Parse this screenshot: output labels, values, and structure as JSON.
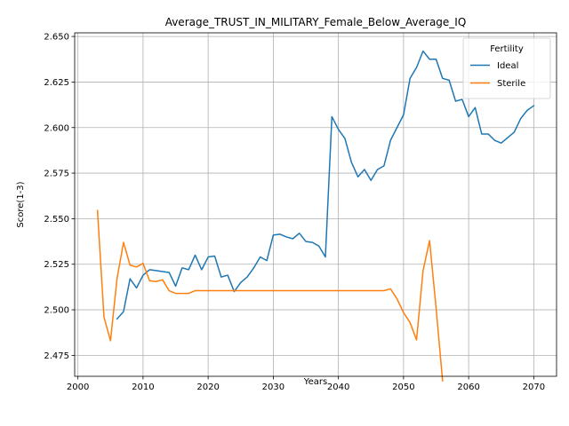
{
  "chart_data": {
    "type": "line",
    "title": "Average_TRUST_IN_MILITARY_Female_Below_Average_IQ",
    "xlabel": "Years",
    "ylabel": "Score(1-3)",
    "xlim": [
      1999.5,
      2073.5
    ],
    "ylim": [
      2.4635,
      2.652
    ],
    "xticks": [
      2000,
      2010,
      2020,
      2030,
      2040,
      2050,
      2060,
      2070
    ],
    "yticks": [
      2.475,
      2.5,
      2.525,
      2.55,
      2.575,
      2.6,
      2.625,
      2.65
    ],
    "grid": true,
    "legend": {
      "title": "Fertility",
      "position": "top-right"
    },
    "series": [
      {
        "name": "Ideal",
        "color": "#1f77b4",
        "x": [
          2006,
          2007,
          2008,
          2009,
          2010,
          2011,
          2012,
          2013,
          2014,
          2015,
          2016,
          2017,
          2018,
          2019,
          2020,
          2021,
          2022,
          2023,
          2024,
          2025,
          2026,
          2027,
          2028,
          2029,
          2030,
          2031,
          2032,
          2033,
          2034,
          2035,
          2036,
          2037,
          2038,
          2039,
          2040,
          2041,
          2042,
          2043,
          2044,
          2045,
          2046,
          2047,
          2048,
          2049,
          2050,
          2051,
          2052,
          2053,
          2054,
          2055,
          2056,
          2057,
          2058,
          2059,
          2060,
          2061,
          2062,
          2063,
          2064,
          2065,
          2066,
          2067,
          2068,
          2069,
          2070
        ],
        "y": [
          2.495,
          2.499,
          2.517,
          2.512,
          2.519,
          2.522,
          2.5215,
          2.521,
          2.5205,
          2.513,
          2.523,
          2.522,
          2.53,
          2.522,
          2.529,
          2.5295,
          2.518,
          2.519,
          2.51,
          2.515,
          2.518,
          2.523,
          2.529,
          2.527,
          2.541,
          2.5415,
          2.54,
          2.539,
          2.542,
          2.5375,
          2.537,
          2.535,
          2.529,
          2.606,
          2.599,
          2.594,
          2.581,
          2.573,
          2.577,
          2.571,
          2.577,
          2.579,
          2.593,
          2.6,
          2.607,
          2.627,
          2.633,
          2.642,
          2.6375,
          2.6375,
          2.627,
          2.626,
          2.6145,
          2.6155,
          2.606,
          2.611,
          2.5965,
          2.5965,
          2.593,
          2.5915,
          2.5945,
          2.5975,
          2.605,
          2.6095,
          2.612
        ]
      },
      {
        "name": "Sterile",
        "color": "#ff7f0e",
        "x": [
          2003,
          2004,
          2005,
          2006,
          2007,
          2008,
          2009,
          2010,
          2011,
          2012,
          2013,
          2014,
          2015,
          2016,
          2017,
          2018,
          2019,
          2020,
          2021,
          2022,
          2023,
          2024,
          2025,
          2026,
          2027,
          2028,
          2029,
          2030,
          2031,
          2032,
          2033,
          2034,
          2035,
          2036,
          2037,
          2038,
          2039,
          2040,
          2041,
          2042,
          2043,
          2044,
          2045,
          2046,
          2047,
          2048,
          2049,
          2050,
          2051,
          2052,
          2053,
          2054,
          2055,
          2056
        ],
        "y": [
          2.5545,
          2.496,
          2.483,
          2.517,
          2.537,
          2.5245,
          2.5235,
          2.5255,
          2.516,
          2.5155,
          2.5165,
          2.5105,
          2.509,
          2.509,
          2.509,
          2.5105,
          2.5105,
          2.5105,
          2.5105,
          2.5105,
          2.5105,
          2.5105,
          2.5105,
          2.5105,
          2.5105,
          2.5105,
          2.5105,
          2.5105,
          2.5105,
          2.5105,
          2.5105,
          2.5105,
          2.5105,
          2.5105,
          2.5105,
          2.5105,
          2.5105,
          2.5105,
          2.5105,
          2.5105,
          2.5105,
          2.5105,
          2.5105,
          2.5105,
          2.5105,
          2.5115,
          2.506,
          2.4985,
          2.493,
          2.4835,
          2.5215,
          2.538,
          2.501,
          2.461
        ]
      }
    ]
  }
}
